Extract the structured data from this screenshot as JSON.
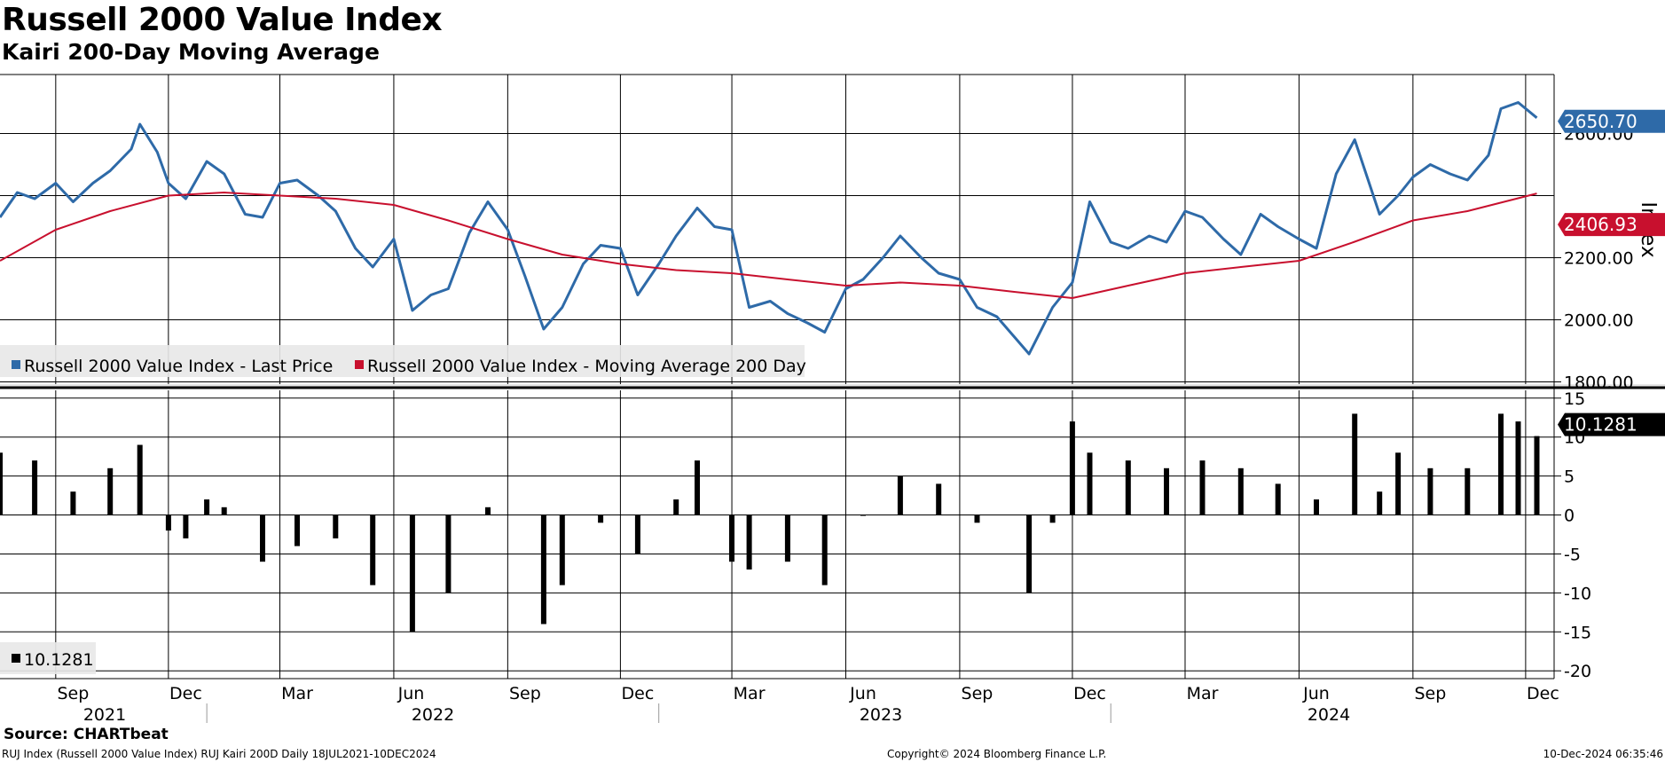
{
  "header": {
    "title": "Russell 2000 Value Index",
    "subtitle": "Kairi 200-Day Moving Average"
  },
  "footer": {
    "source": "Source: CHARTbeat",
    "left": "RUJ Index (Russell 2000 Value Index) RUJ Kairi 200D  Daily 18JUL2021-10DEC2024",
    "center": "Copyright© 2024 Bloomberg Finance L.P.",
    "right": "10-Dec-2024 06:35:46"
  },
  "colors": {
    "price": "#2e6aa8",
    "ma": "#c8102e",
    "kairi": "#000000",
    "grid": "#000000"
  },
  "chart_data": [
    {
      "type": "line",
      "panel": "upper",
      "ylabel": "Index",
      "ylim": [
        1790,
        2790
      ],
      "yticks": [
        1800,
        2000,
        2200,
        2600
      ],
      "ytick_labels": [
        "1800.00",
        "2000.00",
        "2200.00",
        "2600.00"
      ],
      "x_months": [
        "Sep",
        "Dec",
        "Mar",
        "Jun",
        "Sep",
        "Dec",
        "Mar",
        "Jun",
        "Sep",
        "Dec",
        "Mar",
        "Jun",
        "Sep",
        "Dec"
      ],
      "x_years": [
        "2021",
        "2022",
        "2023",
        "2024"
      ],
      "legend": [
        "Russell 2000 Value Index - Last Price",
        "Russell 2000 Value Index - Moving Average 200 Day"
      ],
      "legend_placement": "bottom-left",
      "grid": true,
      "last_price_label": "2650.70",
      "ma_label": "2406.93",
      "series": [
        {
          "name": "Russell 2000 Value Index - Last Price",
          "x": [
            "2021-07-18",
            "2021-08-01",
            "2021-08-15",
            "2021-09-01",
            "2021-09-15",
            "2021-10-01",
            "2021-10-15",
            "2021-11-01",
            "2021-11-08",
            "2021-11-22",
            "2021-12-01",
            "2021-12-15",
            "2022-01-01",
            "2022-01-15",
            "2022-02-01",
            "2022-02-15",
            "2022-03-01",
            "2022-03-15",
            "2022-04-01",
            "2022-04-15",
            "2022-05-01",
            "2022-05-15",
            "2022-06-01",
            "2022-06-16",
            "2022-07-01",
            "2022-07-15",
            "2022-08-01",
            "2022-08-16",
            "2022-09-01",
            "2022-09-15",
            "2022-09-30",
            "2022-10-15",
            "2022-11-01",
            "2022-11-15",
            "2022-12-01",
            "2022-12-15",
            "2023-01-01",
            "2023-01-15",
            "2023-02-01",
            "2023-02-15",
            "2023-03-01",
            "2023-03-15",
            "2023-04-01",
            "2023-04-15",
            "2023-05-01",
            "2023-05-15",
            "2023-06-01",
            "2023-06-15",
            "2023-07-01",
            "2023-07-15",
            "2023-08-01",
            "2023-08-15",
            "2023-09-01",
            "2023-09-15",
            "2023-10-01",
            "2023-10-27",
            "2023-11-15",
            "2023-12-01",
            "2023-12-15",
            "2024-01-01",
            "2024-01-15",
            "2024-02-01",
            "2024-02-15",
            "2024-03-01",
            "2024-03-15",
            "2024-04-01",
            "2024-04-15",
            "2024-05-01",
            "2024-05-15",
            "2024-06-01",
            "2024-06-15",
            "2024-07-01",
            "2024-07-16",
            "2024-08-05",
            "2024-08-20",
            "2024-09-01",
            "2024-09-15",
            "2024-10-01",
            "2024-10-15",
            "2024-11-01",
            "2024-11-11",
            "2024-11-25",
            "2024-12-10"
          ],
          "values": [
            2330,
            2410,
            2390,
            2440,
            2380,
            2440,
            2480,
            2550,
            2630,
            2540,
            2440,
            2390,
            2510,
            2470,
            2340,
            2330,
            2440,
            2450,
            2400,
            2350,
            2230,
            2170,
            2260,
            2030,
            2080,
            2100,
            2280,
            2380,
            2290,
            2140,
            1970,
            2040,
            2180,
            2240,
            2230,
            2080,
            2180,
            2270,
            2360,
            2300,
            2290,
            2040,
            2060,
            2020,
            1990,
            1960,
            2100,
            2130,
            2200,
            2270,
            2200,
            2150,
            2130,
            2040,
            2010,
            1890,
            2040,
            2120,
            2380,
            2250,
            2230,
            2270,
            2250,
            2350,
            2330,
            2260,
            2210,
            2340,
            2300,
            2260,
            2230,
            2470,
            2580,
            2340,
            2400,
            2460,
            2500,
            2470,
            2450,
            2530,
            2680,
            2700,
            2650.7
          ]
        },
        {
          "name": "Russell 2000 Value Index - Moving Average 200 Day",
          "x": [
            "2021-07-18",
            "2021-09-01",
            "2021-10-15",
            "2021-12-01",
            "2022-01-15",
            "2022-03-01",
            "2022-04-15",
            "2022-06-01",
            "2022-07-15",
            "2022-09-01",
            "2022-10-15",
            "2022-12-01",
            "2023-01-15",
            "2023-03-01",
            "2023-04-15",
            "2023-06-01",
            "2023-07-15",
            "2023-09-01",
            "2023-10-15",
            "2023-12-01",
            "2024-01-15",
            "2024-03-01",
            "2024-04-15",
            "2024-06-01",
            "2024-07-15",
            "2024-09-01",
            "2024-10-15",
            "2024-12-10"
          ],
          "values": [
            2190,
            2290,
            2350,
            2400,
            2410,
            2400,
            2390,
            2370,
            2320,
            2260,
            2210,
            2180,
            2160,
            2150,
            2130,
            2110,
            2120,
            2110,
            2090,
            2070,
            2110,
            2150,
            2170,
            2190,
            2250,
            2320,
            2350,
            2406.93
          ]
        }
      ]
    },
    {
      "type": "bar",
      "panel": "lower",
      "ylim": [
        -21,
        16
      ],
      "yticks": [
        15,
        10,
        5,
        0,
        -5,
        -10,
        -15,
        -20
      ],
      "ytick_labels": [
        "15",
        "10",
        "5",
        "0",
        "-5",
        "-10",
        "-15",
        "-20"
      ],
      "legend": [
        "10.1281"
      ],
      "legend_placement": "bottom-left",
      "grid": true,
      "last_value_label": "10.1281",
      "series": [
        {
          "name": "10.1281",
          "x": [
            "2021-07-18",
            "2021-08-15",
            "2021-09-15",
            "2021-10-15",
            "2021-11-08",
            "2021-12-01",
            "2021-12-15",
            "2022-01-01",
            "2022-01-15",
            "2022-02-15",
            "2022-03-15",
            "2022-04-15",
            "2022-05-15",
            "2022-06-16",
            "2022-07-15",
            "2022-08-16",
            "2022-09-30",
            "2022-10-15",
            "2022-11-15",
            "2022-12-15",
            "2023-01-15",
            "2023-02-01",
            "2023-03-01",
            "2023-03-15",
            "2023-04-15",
            "2023-05-15",
            "2023-06-15",
            "2023-07-15",
            "2023-08-15",
            "2023-09-15",
            "2023-10-27",
            "2023-11-15",
            "2023-12-01",
            "2023-12-15",
            "2024-01-15",
            "2024-02-15",
            "2024-03-15",
            "2024-04-15",
            "2024-05-15",
            "2024-06-15",
            "2024-07-16",
            "2024-08-05",
            "2024-08-20",
            "2024-09-15",
            "2024-10-15",
            "2024-11-11",
            "2024-11-25",
            "2024-12-10"
          ],
          "values": [
            8,
            7,
            3,
            6,
            9,
            -2,
            -3,
            2,
            1,
            -6,
            -4,
            -3,
            -9,
            -15,
            -10,
            1,
            -14,
            -9,
            -1,
            -5,
            2,
            7,
            -6,
            -7,
            -6,
            -9,
            0,
            5,
            4,
            -1,
            -10,
            -1,
            12,
            8,
            7,
            6,
            7,
            6,
            4,
            2,
            13,
            3,
            8,
            6,
            6,
            13,
            12,
            10.1281
          ]
        }
      ]
    }
  ]
}
